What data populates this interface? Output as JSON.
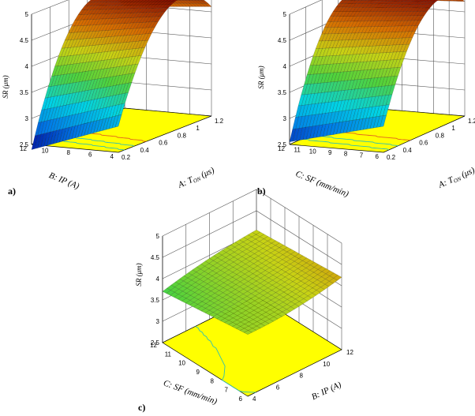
{
  "chart_data": [
    {
      "type": "surface",
      "panel_label": "a)",
      "zlabel": "SR (μm)",
      "zticks": [
        "2.5",
        "3",
        "3.5",
        "4",
        "4.5",
        "5"
      ],
      "zlim": [
        2.5,
        5
      ],
      "xaxis": {
        "label": "A: T",
        "label_sub": "ON",
        "label_unit": " (μs)",
        "ticks": [
          "0.2",
          "0.4",
          "0.6",
          "0.8",
          "1",
          "1.2"
        ],
        "range": [
          0.2,
          1.2
        ]
      },
      "yaxis": {
        "label": "B: IP (A)",
        "ticks": [
          "4",
          "6",
          "8",
          "10",
          "12"
        ],
        "range": [
          4,
          12
        ]
      },
      "corners": {
        "x_min_y_min": 3.0,
        "x_max_y_min": 4.6,
        "x_min_y_max": 2.4,
        "x_max_y_max": 4.45,
        "peak_x": 1.0,
        "peak_z": 4.95
      }
    },
    {
      "type": "surface",
      "panel_label": "b)",
      "zlabel": "SR (μm)",
      "zticks": [
        "2.5",
        "3",
        "3.5",
        "4",
        "4.5",
        "5"
      ],
      "zlim": [
        2.5,
        5
      ],
      "xaxis": {
        "label": "A: T",
        "label_sub": "ON",
        "label_unit": " (μs)",
        "ticks": [
          "0.2",
          "0.4",
          "0.6",
          "0.8",
          "1",
          "1.2"
        ],
        "range": [
          0.2,
          1.2
        ]
      },
      "yaxis": {
        "label": "C: SF (mm/min)",
        "ticks": [
          "6",
          "7",
          "8",
          "9",
          "10",
          "11",
          "12"
        ],
        "range": [
          6,
          12
        ]
      },
      "corners": {
        "x_min_y_min": 3.0,
        "x_max_y_min": 4.7,
        "x_min_y_max": 2.55,
        "x_max_y_max": 4.6,
        "peak_x": 1.0,
        "peak_z": 4.95
      }
    },
    {
      "type": "surface",
      "panel_label": "c)",
      "zlabel": "SR (μm)",
      "zticks": [
        "2.5",
        "3",
        "3.5",
        "4",
        "4.5",
        "5"
      ],
      "zlim": [
        2.5,
        5
      ],
      "xaxis": {
        "label": "B: IP (A)",
        "ticks": [
          "4",
          "6",
          "8",
          "10",
          "12"
        ],
        "range": [
          4,
          12
        ]
      },
      "yaxis": {
        "label": "C: SF (mm/min)",
        "ticks": [
          "6",
          "7",
          "8",
          "9",
          "10",
          "11",
          "12"
        ],
        "range": [
          6,
          12
        ]
      },
      "corners": {
        "x_min_y_min": 3.95,
        "x_max_y_min": 4.2,
        "x_min_y_max": 3.7,
        "x_max_y_max": 4.05,
        "peak_x": 8,
        "peak_z": 4.0
      }
    }
  ]
}
